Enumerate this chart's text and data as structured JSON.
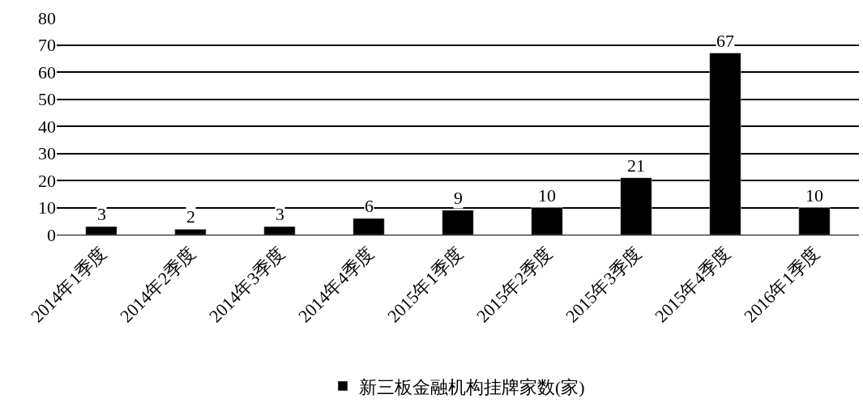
{
  "chart_data": {
    "type": "bar",
    "categories": [
      "2014年1季度",
      "2014年2季度",
      "2014年3季度",
      "2014年4季度",
      "2015年1季度",
      "2015年2季度",
      "2015年3季度",
      "2015年4季度",
      "2016年1季度"
    ],
    "series": [
      {
        "name": "新三板金融机构挂牌家数(家)",
        "color": "#000000",
        "values": [
          3,
          2,
          3,
          6,
          9,
          10,
          21,
          67,
          10
        ]
      }
    ],
    "ylim": [
      0,
      80
    ],
    "yticks": [
      0,
      10,
      20,
      30,
      40,
      50,
      60,
      70,
      80
    ],
    "grid": "y",
    "legend": "bottom",
    "data_labels": true
  }
}
